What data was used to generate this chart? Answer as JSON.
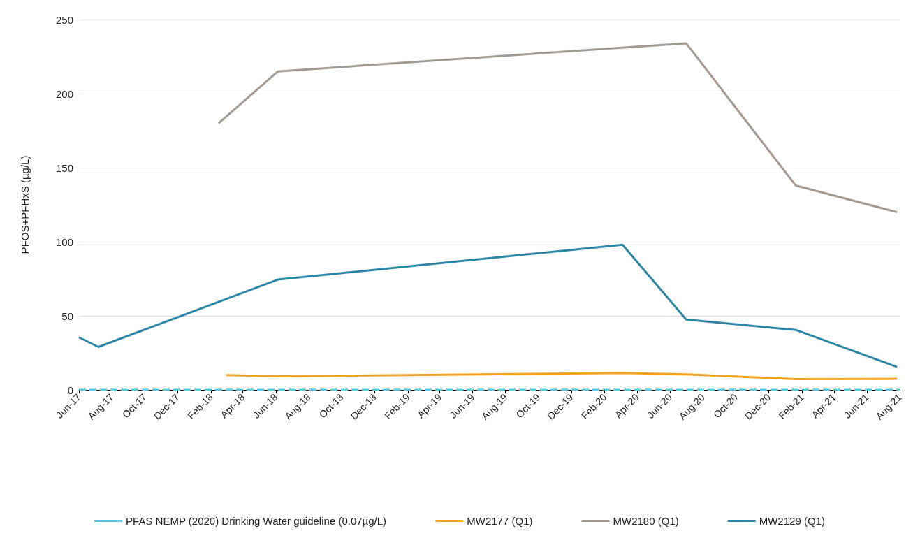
{
  "chart_data": {
    "type": "line",
    "ylabel": "PFOS+PFHxS (µg/L)",
    "xlim": [
      "2017-06-01",
      "2021-08-01"
    ],
    "xticks": [
      {
        "value": "2017-06-01",
        "label": "Jun-17"
      },
      {
        "value": "2017-08-01",
        "label": "Aug-17"
      },
      {
        "value": "2017-10-01",
        "label": "Oct-17"
      },
      {
        "value": "2017-12-01",
        "label": "Dec-17"
      },
      {
        "value": "2018-02-01",
        "label": "Feb-18"
      },
      {
        "value": "2018-04-01",
        "label": "Apr-18"
      },
      {
        "value": "2018-06-01",
        "label": "Jun-18"
      },
      {
        "value": "2018-08-01",
        "label": "Aug-18"
      },
      {
        "value": "2018-10-01",
        "label": "Oct-18"
      },
      {
        "value": "2018-12-01",
        "label": "Dec-18"
      },
      {
        "value": "2019-02-01",
        "label": "Feb-19"
      },
      {
        "value": "2019-04-01",
        "label": "Apr-19"
      },
      {
        "value": "2019-06-01",
        "label": "Jun-19"
      },
      {
        "value": "2019-08-01",
        "label": "Aug-19"
      },
      {
        "value": "2019-10-01",
        "label": "Oct-19"
      },
      {
        "value": "2019-12-01",
        "label": "Dec-19"
      },
      {
        "value": "2020-02-01",
        "label": "Feb-20"
      },
      {
        "value": "2020-04-01",
        "label": "Apr-20"
      },
      {
        "value": "2020-06-01",
        "label": "Jun-20"
      },
      {
        "value": "2020-08-01",
        "label": "Aug-20"
      },
      {
        "value": "2020-10-01",
        "label": "Oct-20"
      },
      {
        "value": "2020-12-01",
        "label": "Dec-20"
      },
      {
        "value": "2021-02-01",
        "label": "Feb-21"
      },
      {
        "value": "2021-04-01",
        "label": "Apr-21"
      },
      {
        "value": "2021-06-01",
        "label": "Jun-21"
      },
      {
        "value": "2021-08-01",
        "label": "Aug-21"
      }
    ],
    "ylim": [
      0,
      250
    ],
    "yticks": [
      0,
      50,
      100,
      150,
      200,
      250
    ],
    "grid": "y",
    "legend": "bottom",
    "marker": "none",
    "line_style": "solid",
    "ref_lines": [
      {
        "axis": "y",
        "value": 0.07,
        "label": "PFAS NEMP (2020) Drinking Water guideline (0.07µg/L)",
        "color": "#5bc8e0",
        "line_style": "dashed"
      }
    ],
    "series": [
      {
        "name": "MW2177 (Q1)",
        "color": "#f5a31f",
        "x": [
          "2018-03-01",
          "2018-06-05",
          "2020-03-05",
          "2020-07-01",
          "2021-01-20",
          "2021-07-27"
        ],
        "values": [
          10,
          9.2,
          11.4,
          10.5,
          7.3,
          7.5
        ]
      },
      {
        "name": "MW2180 (Q1)",
        "color": "#a39a92",
        "x": [
          "2018-02-15",
          "2018-06-05",
          "2020-07-01",
          "2021-01-20",
          "2021-07-27"
        ],
        "values": [
          180,
          215,
          234,
          138,
          120
        ]
      },
      {
        "name": "MW2129 (Q1)",
        "color": "#2e86a6",
        "x": [
          "2017-06-01",
          "2017-07-07",
          "2018-06-05",
          "2020-03-05",
          "2020-07-01",
          "2021-01-20",
          "2021-07-27"
        ],
        "values": [
          35.5,
          29,
          74.5,
          98,
          47.5,
          40.5,
          15.5
        ]
      }
    ]
  }
}
